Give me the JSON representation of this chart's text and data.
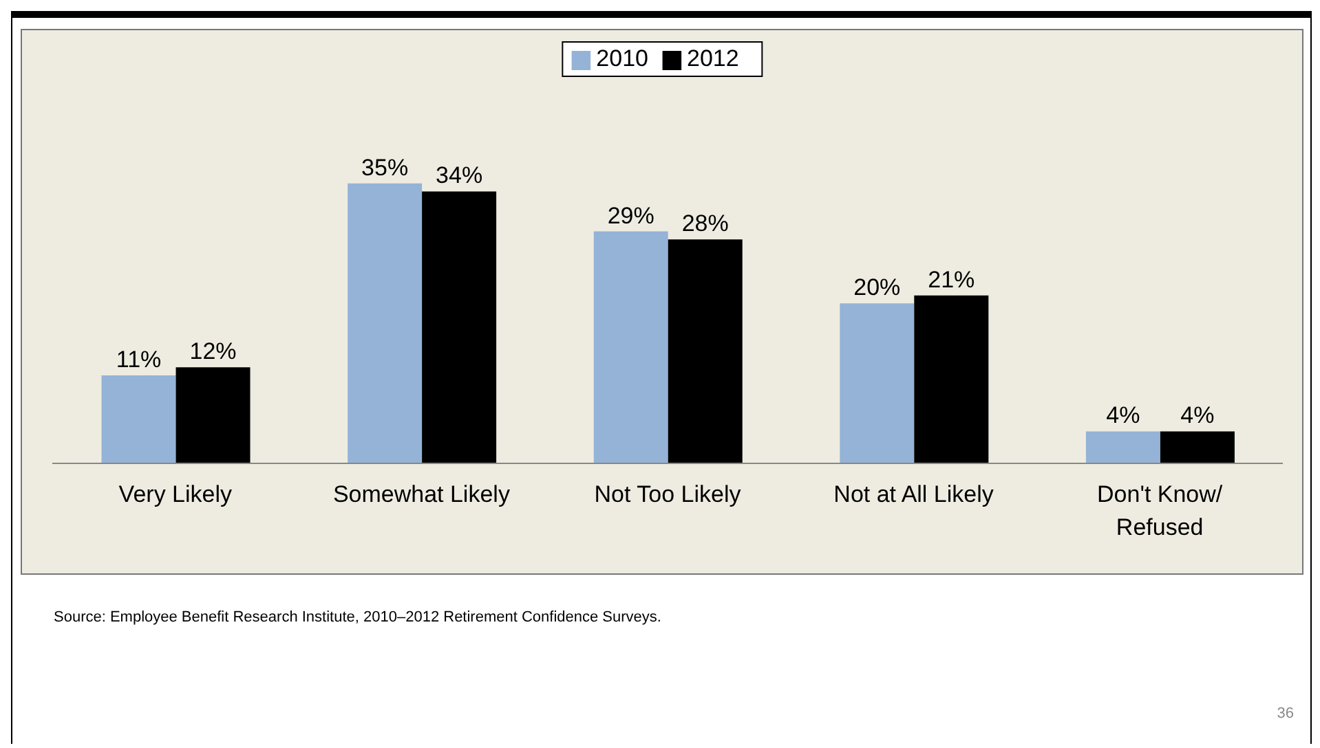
{
  "chart_data": {
    "type": "bar",
    "categories": [
      "Very Likely",
      "Somewhat Likely",
      "Not Too Likely",
      "Not at All Likely",
      "Don't Know/Refused"
    ],
    "series": [
      {
        "name": "2010",
        "color": "#95b3d7",
        "values": [
          11,
          35,
          29,
          20,
          4
        ],
        "value_labels": [
          "11%",
          "35%",
          "29%",
          "20%",
          "4%"
        ]
      },
      {
        "name": "2012",
        "color": "#000000",
        "values": [
          12,
          34,
          28,
          21,
          4
        ],
        "value_labels": [
          "12%",
          "34%",
          "28%",
          "21%",
          "4%"
        ]
      }
    ],
    "legend": "top",
    "annotations": [
      "Source:  Employee Benefit Research Institute, 2010–2012 Retirement Confidence Surveys.",
      "36"
    ]
  }
}
